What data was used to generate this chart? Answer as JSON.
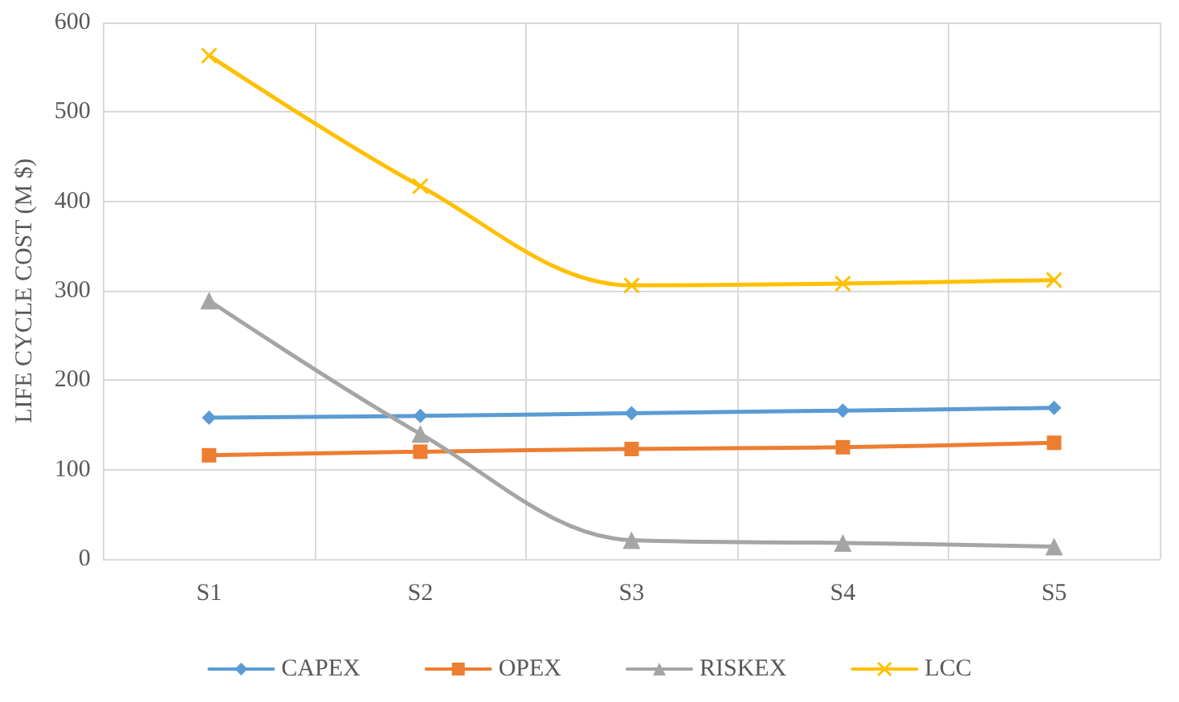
{
  "chart_data": {
    "type": "line",
    "ylabel": "LIFE CYCLE COST (M $)",
    "categories": [
      "S1",
      "S2",
      "S3",
      "S4",
      "S5"
    ],
    "series": [
      {
        "name": "CAPEX",
        "color": "#5b9bd5",
        "marker": "diamond",
        "values": [
          158,
          160,
          163,
          166,
          169
        ]
      },
      {
        "name": "OPEX",
        "color": "#ed7d31",
        "marker": "square",
        "values": [
          116,
          120,
          123,
          125,
          130
        ]
      },
      {
        "name": "RISKEX",
        "color": "#a5a5a5",
        "marker": "triangle",
        "values": [
          289,
          140,
          21,
          18,
          14
        ]
      },
      {
        "name": "LCC",
        "color": "#ffc000",
        "marker": "cross",
        "values": [
          563,
          417,
          306,
          308,
          312
        ]
      }
    ],
    "ylim": [
      0,
      600
    ],
    "yticks": [
      0,
      100,
      200,
      300,
      400,
      500,
      600
    ],
    "grid": true,
    "legend": "bottom",
    "line_style": "solid"
  }
}
